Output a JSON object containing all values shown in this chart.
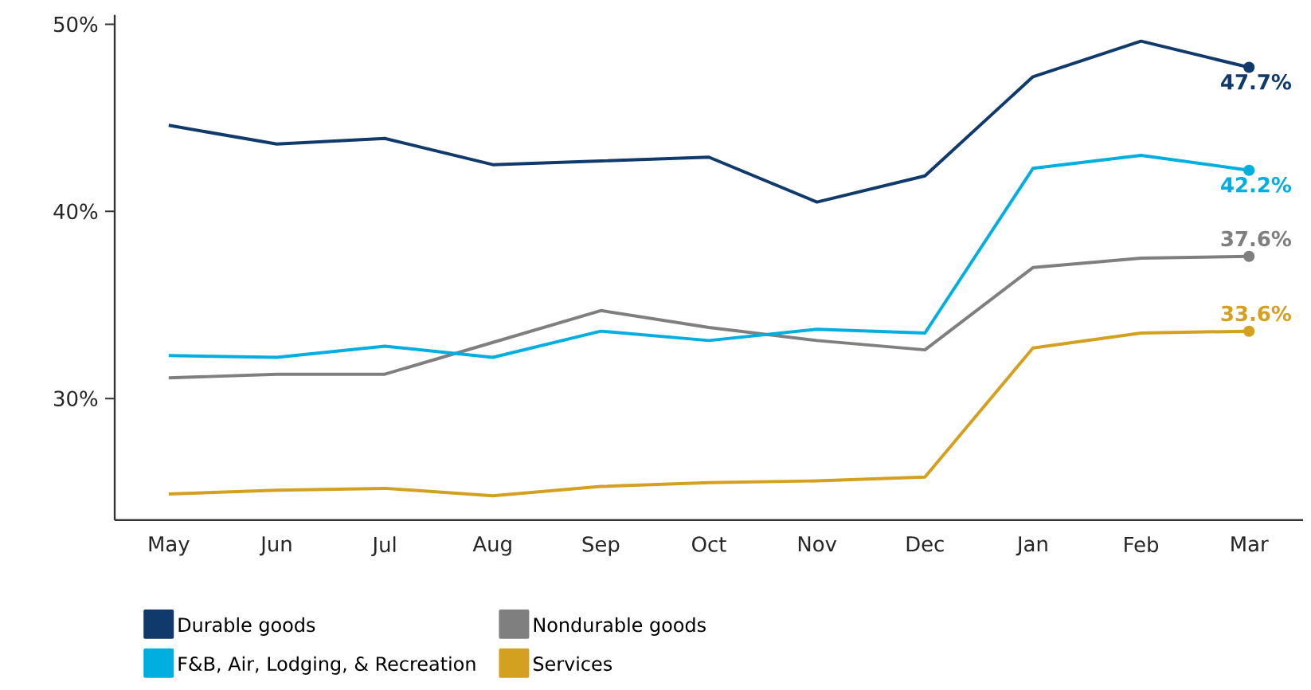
{
  "chart_data": {
    "type": "line",
    "categories": [
      "May",
      "Jun",
      "Jul",
      "Aug",
      "Sep",
      "Oct",
      "Nov",
      "Dec",
      "Jan",
      "Feb",
      "Mar"
    ],
    "series": [
      {
        "name": "Durable goods",
        "color": "#0f3a6b",
        "values": [
          44.6,
          43.6,
          43.9,
          42.5,
          42.7,
          42.9,
          40.5,
          41.9,
          47.2,
          49.1,
          47.7
        ],
        "value_labels": [
          null,
          null,
          null,
          null,
          null,
          null,
          null,
          null,
          null,
          null,
          "47.7%"
        ]
      },
      {
        "name": "Nondurable goods",
        "color": "#7f7f7f",
        "values": [
          31.1,
          31.3,
          31.3,
          33.0,
          34.7,
          33.8,
          33.1,
          32.6,
          37.0,
          37.5,
          37.6
        ],
        "value_labels": [
          null,
          null,
          null,
          null,
          null,
          null,
          null,
          null,
          null,
          null,
          "37.6%"
        ]
      },
      {
        "name": "F&B, Air, Lodging, & Recreation",
        "color": "#00aee0",
        "values": [
          32.3,
          32.2,
          32.8,
          32.2,
          33.6,
          33.1,
          33.7,
          33.5,
          42.3,
          43.0,
          42.2
        ],
        "value_labels": [
          null,
          null,
          null,
          null,
          null,
          null,
          null,
          null,
          null,
          null,
          "42.2%"
        ]
      },
      {
        "name": "Services",
        "color": "#d4a020",
        "values": [
          24.9,
          25.1,
          25.2,
          24.8,
          25.3,
          25.5,
          25.6,
          25.8,
          32.7,
          33.5,
          33.6
        ],
        "value_labels": [
          null,
          null,
          null,
          null,
          null,
          null,
          null,
          null,
          null,
          null,
          "33.6%"
        ]
      }
    ],
    "ylim": [
      23.5,
      50.5
    ],
    "yticks": [
      {
        "value": 30,
        "label": "30%"
      },
      {
        "value": 40,
        "label": "40%"
      },
      {
        "value": 50,
        "label": "50%"
      }
    ],
    "grid": false,
    "legend": "bottom"
  }
}
